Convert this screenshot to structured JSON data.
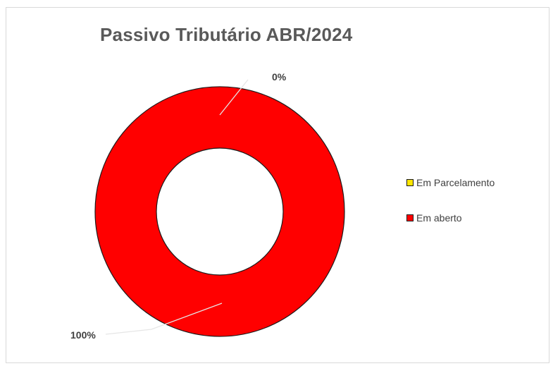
{
  "chart_data": {
    "type": "pie",
    "subtype": "donut",
    "title": "Passivo Tributário ABR/2024",
    "categories": [
      "Em Parcelamento",
      "Em aberto"
    ],
    "values": [
      0,
      100
    ],
    "value_unit": "%",
    "data_labels": [
      "0%",
      "100%"
    ],
    "colors": [
      "#FFE600",
      "#FF0000"
    ],
    "legend_position": "right"
  }
}
